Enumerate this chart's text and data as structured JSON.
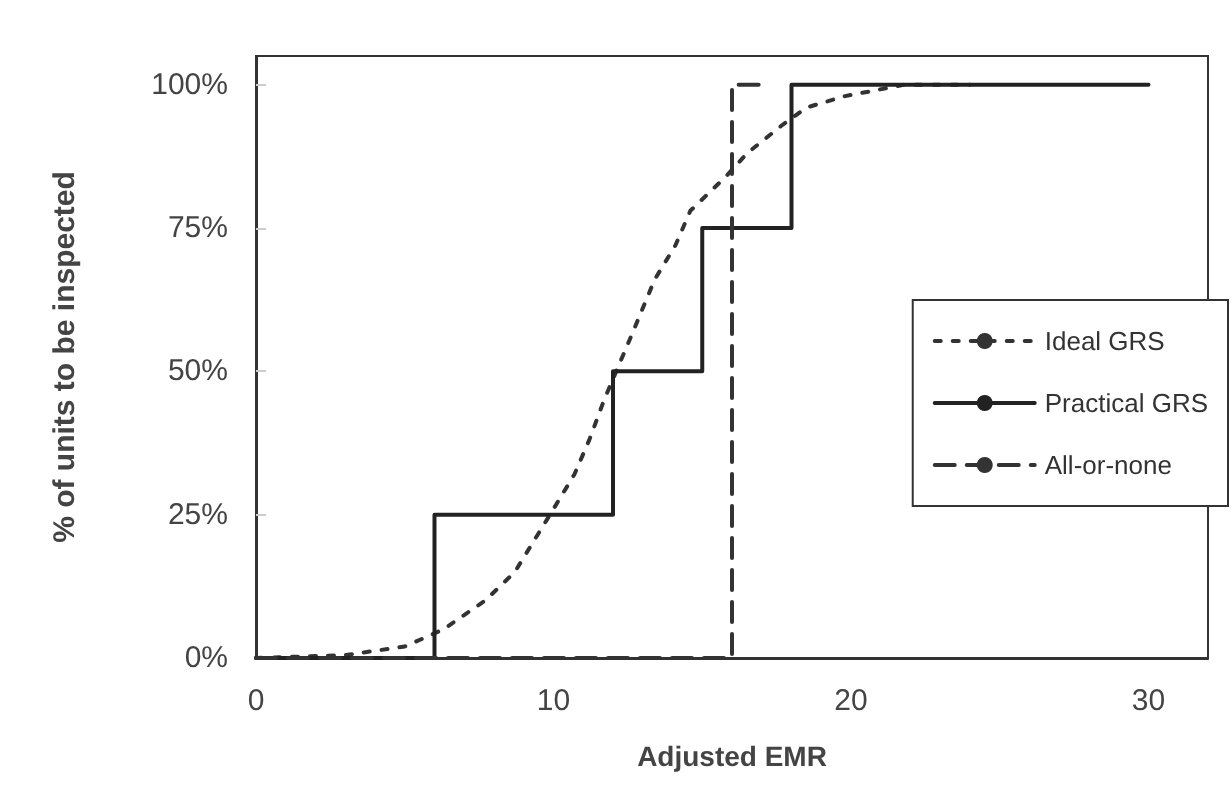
{
  "chart_data": {
    "type": "line",
    "xlabel": "Adjusted EMR",
    "ylabel": "% of units to be inspected",
    "xlim": [
      0,
      32
    ],
    "xticks": [
      0,
      10,
      20,
      30
    ],
    "ylim": [
      0,
      105
    ],
    "yticks": [
      {
        "value": 0,
        "label": "0%"
      },
      {
        "value": 25,
        "label": "25%"
      },
      {
        "value": 50,
        "label": "50%"
      },
      {
        "value": 75,
        "label": "75%"
      },
      {
        "value": 100,
        "label": "100%"
      }
    ],
    "grid": false,
    "legend": "right",
    "marker": "none",
    "series": [
      {
        "name": "Ideal GRS",
        "line_style": "dotted",
        "color": "#333333",
        "x": [
          0,
          3,
          5,
          6.3,
          7.7,
          8.7,
          10,
          10.7,
          11.2,
          11.7,
          12.6,
          13.4,
          14.1,
          14.6,
          15.8,
          16.5,
          17.7,
          18.5,
          19.8,
          21.8,
          24
        ],
        "values": [
          0,
          0.5,
          2,
          5,
          10,
          15,
          26,
          32,
          38,
          45,
          56,
          66,
          72,
          78,
          84,
          88,
          93,
          96,
          98,
          100,
          100
        ]
      },
      {
        "name": "Practical GRS",
        "type": "step",
        "line_style": "solid",
        "color": "#222222",
        "x": [
          0,
          6,
          12,
          15,
          18,
          30
        ],
        "values": [
          0,
          25,
          50,
          75,
          100,
          100
        ]
      },
      {
        "name": "All-or-none",
        "type": "step",
        "line_style": "dashed",
        "color": "#333333",
        "x": [
          0,
          16,
          17
        ],
        "values": [
          0,
          100,
          100
        ]
      }
    ]
  }
}
